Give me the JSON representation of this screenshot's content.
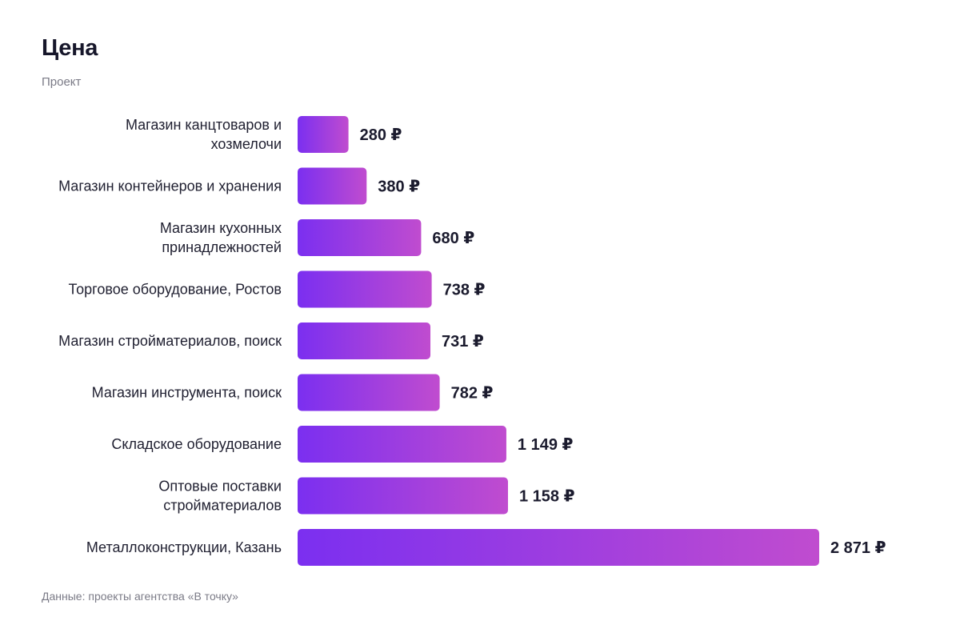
{
  "header": {
    "title": "Цена",
    "subtitle": "Проект"
  },
  "footer": {
    "source": "Данные: проекты агентства «В точку»"
  },
  "colors": {
    "bar_start": "#7b2ff0",
    "bar_end": "#c04ccf"
  },
  "chart_data": {
    "type": "bar",
    "orientation": "horizontal",
    "title": "Цена",
    "subtitle": "Проект",
    "categories": [
      "Магазин канцтоваров и хозмелочи",
      "Магазин контейнеров и хранения",
      "Магазин кухонных принадлежностей",
      "Торговое оборудование, Ростов",
      "Магазин стройматериалов, поиск",
      "Магазин инструмента, поиск",
      "Складское оборудование",
      "Оптовые поставки стройматериалов",
      "Металлоконструкции, Казань"
    ],
    "category_lines": [
      [
        "Магазин канцтоваров и",
        "хозмелочи"
      ],
      [
        "Магазин контейнеров и хранения"
      ],
      [
        "Магазин кухонных",
        "принадлежностей"
      ],
      [
        "Торговое оборудование, Ростов"
      ],
      [
        "Магазин стройматериалов, поиск"
      ],
      [
        "Магазин инструмента, поиск"
      ],
      [
        "Складское оборудование"
      ],
      [
        "Оптовые поставки",
        "стройматериалов"
      ],
      [
        "Металлоконструкции, Казань"
      ]
    ],
    "values": [
      280,
      380,
      680,
      738,
      731,
      782,
      1149,
      1158,
      2871
    ],
    "value_labels": [
      "280 ₽",
      "380 ₽",
      "680 ₽",
      "738 ₽",
      "731 ₽",
      "782 ₽",
      "1 149 ₽",
      "1 158 ₽",
      "2 871 ₽"
    ],
    "unit": "₽",
    "xlim": [
      0,
      2871
    ],
    "grid": false,
    "legend": false
  }
}
